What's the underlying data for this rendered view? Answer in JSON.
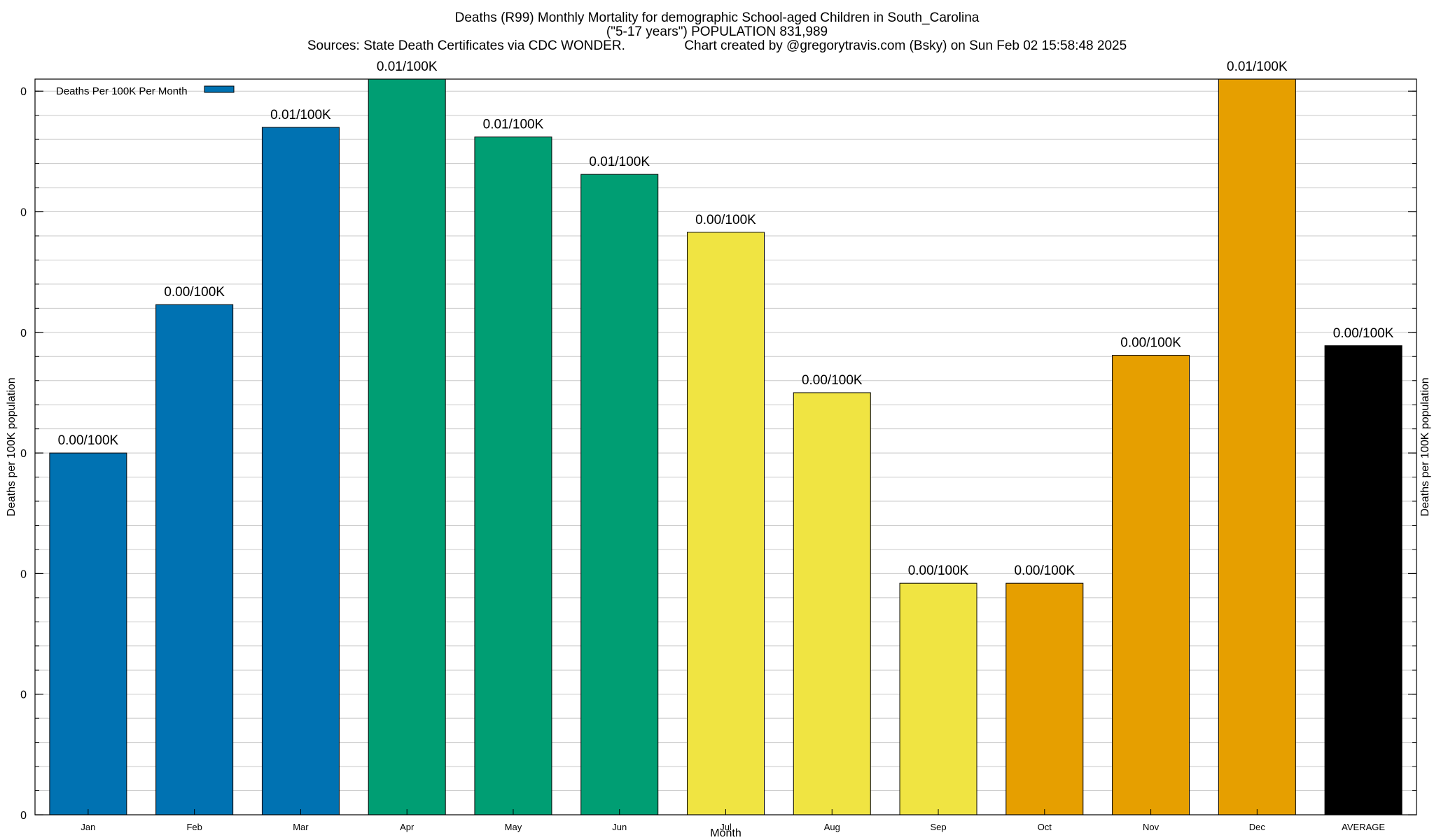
{
  "chart_data": {
    "type": "bar",
    "title_lines": [
      "Deaths (R99) Monthly Mortality for demographic School-aged Children in South_Carolina",
      "(\"5-17 years\") POPULATION 831,989",
      "Sources: State Death Certificates via CDC WONDER.                Chart created by @gregorytravis.com (Bsky) on Sun Feb 02 15:58:48 2025"
    ],
    "xlabel": "Month",
    "ylabel": "Deaths per 100K population",
    "ylabel_right": "Deaths per 100K population",
    "legend": {
      "label": "Deaths Per 100K Per Month",
      "position": "top-left",
      "color": "#0072b2"
    },
    "ylim": [
      0,
      0.0061
    ],
    "yticks": [
      {
        "value": 0.0,
        "label": "0"
      },
      {
        "value": 0.001,
        "label": "0"
      },
      {
        "value": 0.002,
        "label": "0"
      },
      {
        "value": 0.003,
        "label": "0"
      },
      {
        "value": 0.004,
        "label": "0"
      },
      {
        "value": 0.005,
        "label": "0"
      },
      {
        "value": 0.006,
        "label": "0"
      }
    ],
    "minor_ticks_per_major": 5,
    "grid": true,
    "categories": [
      "Jan",
      "Feb",
      "Mar",
      "Apr",
      "May",
      "Jun",
      "Jul",
      "Aug",
      "Sep",
      "Oct",
      "Nov",
      "Dec",
      "AVERAGE"
    ],
    "values": [
      0.003,
      0.00423,
      0.0057,
      0.00613,
      0.00562,
      0.00531,
      0.00483,
      0.0035,
      0.00192,
      0.00192,
      0.00381,
      0.00613,
      0.00389
    ],
    "data_labels": [
      "0.00/100K",
      "0.00/100K",
      "0.01/100K",
      "0.01/100K",
      "0.01/100K",
      "0.01/100K",
      "0.00/100K",
      "0.00/100K",
      "0.00/100K",
      "0.00/100K",
      "0.00/100K",
      "0.01/100K",
      "0.00/100K"
    ],
    "bar_colors": [
      "#0072b2",
      "#0072b2",
      "#0072b2",
      "#009e73",
      "#009e73",
      "#009e73",
      "#f0e442",
      "#f0e442",
      "#f0e442",
      "#e69f00",
      "#e69f00",
      "#e69f00",
      "#000000"
    ]
  }
}
